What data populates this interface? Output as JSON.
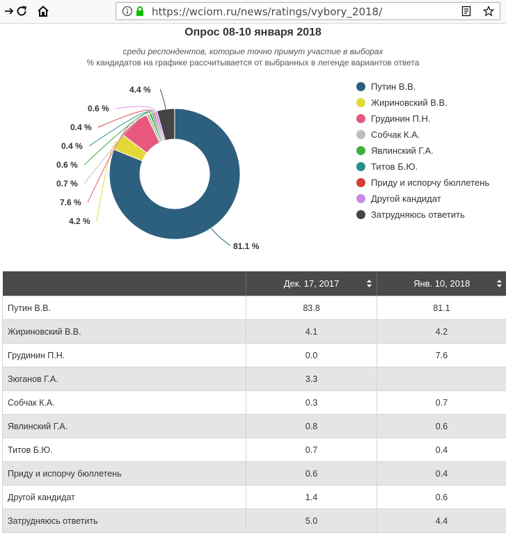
{
  "browser": {
    "url": "https://wciom.ru/news/ratings/vybory_2018/"
  },
  "colors": {
    "putin": "#2d5f7e",
    "zhirinovsky": "#e3d83a",
    "grudinin": "#e8587d",
    "sobchak": "#bdbdbd",
    "yavlinsky": "#3fae3f",
    "titov": "#26908e",
    "spoil": "#d2403a",
    "other": "#c98ae8",
    "undecided": "#454545"
  },
  "chart_data": {
    "type": "pie",
    "title": "Опрос 08-10 января 2018",
    "subtitle": "среди респондентов, которые точно примут участие в выборах",
    "subtitle2": "% кандидатов на графике рассчитывается от выбранных в легенде вариантов ответа",
    "categories": [
      "Путин В.В.",
      "Жириновский В.В.",
      "Грудинин П.Н.",
      "Собчак К.А.",
      "Явлинский Г.А.",
      "Титов Б.Ю.",
      "Приду и испорчу бюллетень",
      "Другой кандидат",
      "Затрудняюсь ответить"
    ],
    "values": [
      81.1,
      4.2,
      7.6,
      0.7,
      0.6,
      0.4,
      0.4,
      0.6,
      4.4
    ],
    "labels": [
      "81.1 %",
      "4.2 %",
      "7.6 %",
      "0.7 %",
      "0.6 %",
      "0.4 %",
      "0.4 %",
      "0.6 %",
      "4.4 %"
    ],
    "color_keys": [
      "putin",
      "zhirinovsky",
      "grudinin",
      "sobchak",
      "yavlinsky",
      "titov",
      "spoil",
      "other",
      "undecided"
    ],
    "legend_position": "right"
  },
  "table": {
    "headers": [
      "",
      "Дек. 17, 2017",
      "Янв. 10, 2018"
    ],
    "rows": [
      [
        "Путин В.В.",
        "83.8",
        "81.1"
      ],
      [
        "Жириновский В.В.",
        "4.1",
        "4.2"
      ],
      [
        "Грудинин П.Н.",
        "0.0",
        "7.6"
      ],
      [
        "Зюганов Г.А.",
        "3.3",
        ""
      ],
      [
        "Собчак К.А.",
        "0.3",
        "0.7"
      ],
      [
        "Явлинский Г.А.",
        "0.8",
        "0.6"
      ],
      [
        "Титов Б.Ю.",
        "0.7",
        "0.4"
      ],
      [
        "Приду и испорчу бюллетень",
        "0.6",
        "0.4"
      ],
      [
        "Другой кандидат",
        "1.4",
        "0.6"
      ],
      [
        "Затрудняюсь ответить",
        "5.0",
        "4.4"
      ]
    ]
  }
}
